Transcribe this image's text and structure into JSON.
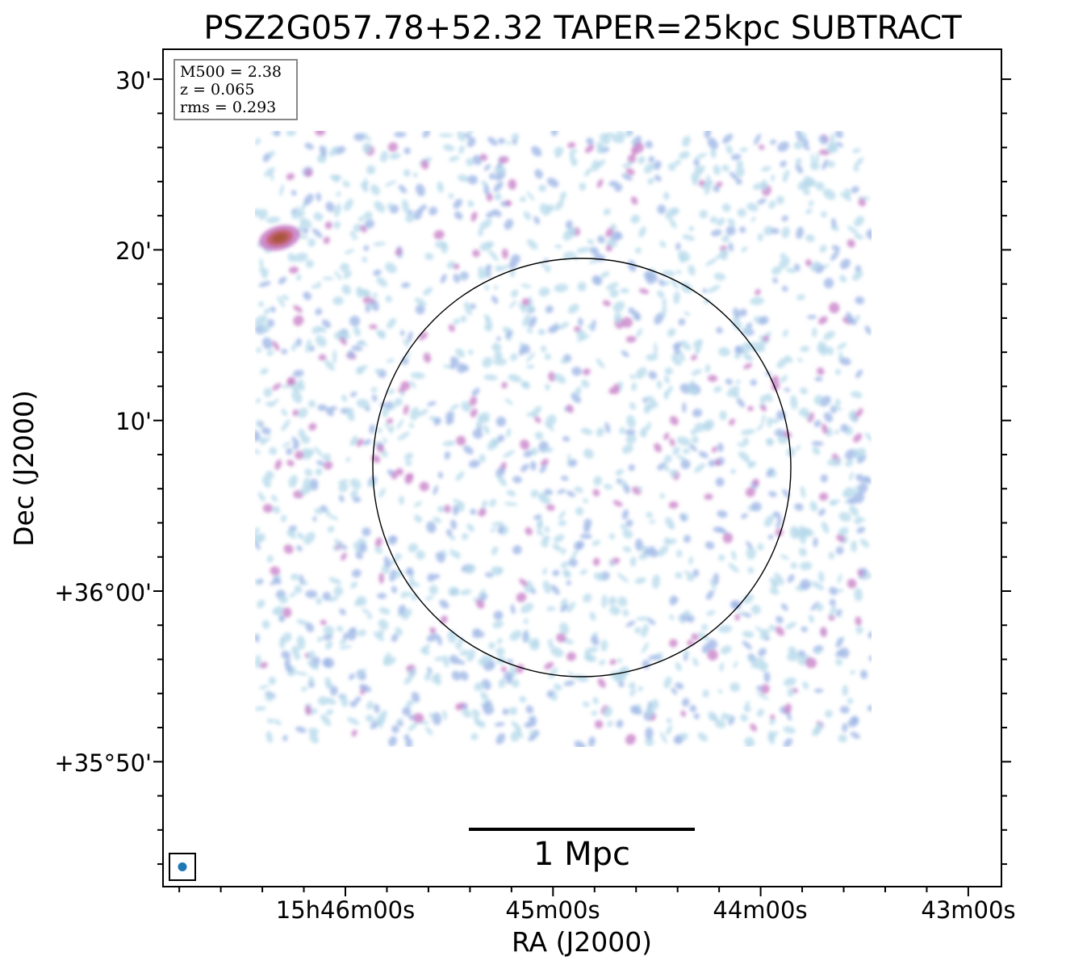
{
  "figure": {
    "title": "PSZ2G057.78+52.32 TAPER=25kpc SUBTRACT",
    "info_box": {
      "lines": [
        "M500 = 2.38",
        "z = 0.065",
        "rms = 0.293"
      ]
    },
    "scalebar_label": "1 Mpc",
    "beam_color": "#1f77b4"
  },
  "chart_data": {
    "type": "heatmap",
    "title": "PSZ2G057.78+52.32 TAPER=25kpc SUBTRACT",
    "xlabel": "RA (J2000)",
    "ylabel": "Dec (J2000)",
    "x_ticks": [
      {
        "label": "15h46m00s",
        "ra_sec": 0
      },
      {
        "label": "45m00s",
        "ra_sec": -60
      },
      {
        "label": "44m00s",
        "ra_sec": -120
      },
      {
        "label": "43m00s",
        "ra_sec": -180
      }
    ],
    "y_ticks": [
      {
        "label": "30'",
        "dec_arcmin": 30
      },
      {
        "label": "20'",
        "dec_arcmin": 20
      },
      {
        "label": "10'",
        "dec_arcmin": 10
      },
      {
        "label": "+36°00'",
        "dec_arcmin": 0
      },
      {
        "label": "+35°50'",
        "dec_arcmin": -10
      }
    ],
    "grid": false,
    "colors": {
      "low": "#b4d8ea",
      "mid": "#9fb6e6",
      "high": "#c982c9",
      "peak": "#a8553a"
    },
    "bright_source": {
      "ra_sec": 19,
      "dec_arcmin": 20.7
    }
  }
}
